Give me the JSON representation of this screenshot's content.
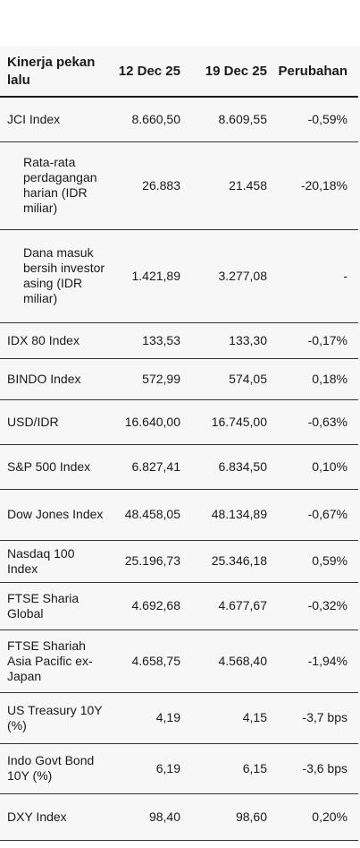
{
  "header": {
    "label": "Kinerja pekan lalu",
    "col1": "12 Dec  25",
    "col2": "19 Dec 25",
    "col3": "Perubahan"
  },
  "rows": [
    {
      "label": "JCI Index",
      "v1": "8.660,50",
      "v2": "8.609,55",
      "change": "-0,59%"
    },
    {
      "label": "Rata-rata perdagangan harian (IDR miliar)",
      "v1": "26.883",
      "v2": "21.458",
      "change": "-20,18%"
    },
    {
      "label": "Dana masuk bersih investor asing (IDR miliar)",
      "v1": "1.421,89",
      "v2": "3.277,08",
      "change": "-"
    },
    {
      "label": "IDX 80 Index",
      "v1": "133,53",
      "v2": "133,30",
      "change": "-0,17%"
    },
    {
      "label": "BINDO Index",
      "v1": "572,99",
      "v2": "574,05",
      "change": "0,18%"
    },
    {
      "label": "USD/IDR",
      "v1": "16.640,00",
      "v2": "16.745,00",
      "change": "-0,63%"
    },
    {
      "label": "S&P 500 Index",
      "v1": "6.827,41",
      "v2": "6.834,50",
      "change": "0,10%"
    },
    {
      "label": "Dow Jones Index",
      "v1": "48.458,05",
      "v2": "48.134,89",
      "change": "-0,67%"
    },
    {
      "label": "Nasdaq 100 Index",
      "v1": "25.196,73",
      "v2": "25.346,18",
      "change": "0,59%"
    },
    {
      "label": "FTSE Sharia Global",
      "v1": "4.692,68",
      "v2": "4.677,67",
      "change": "-0,32%"
    },
    {
      "label": "FTSE Shariah Asia Pacific ex-Japan",
      "v1": "4.658,75",
      "v2": "4.568,40",
      "change": "-1,94%"
    },
    {
      "label": "US Treasury 10Y (%)",
      "v1": "4,19",
      "v2": "4,15",
      "change": "-3,7 bps"
    },
    {
      "label": "Indo Govt Bond 10Y (%)",
      "v1": "6,19",
      "v2": "6,15",
      "change": "-3,6 bps"
    },
    {
      "label": "DXY Index",
      "v1": "98,40",
      "v2": "98,60",
      "change": "0,20%"
    }
  ]
}
